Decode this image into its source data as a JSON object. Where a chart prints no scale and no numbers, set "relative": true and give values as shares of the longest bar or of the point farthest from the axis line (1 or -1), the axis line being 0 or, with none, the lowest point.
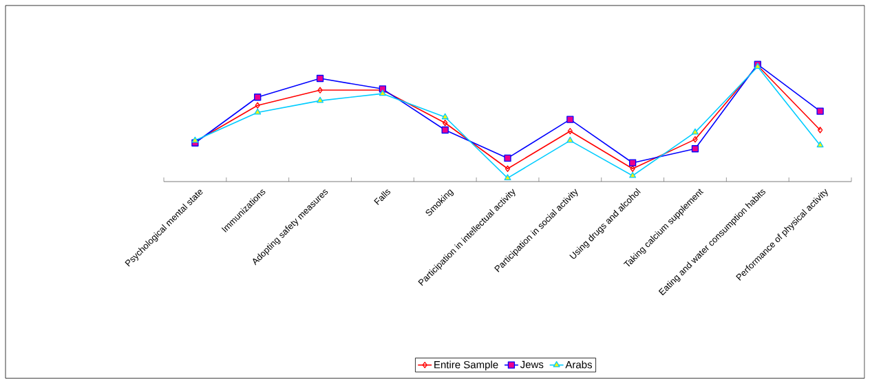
{
  "chart_data": {
    "type": "line",
    "relative": true,
    "categories": [
      "Psychological mental state",
      "Immunizations",
      "Adopting safety measures",
      "Falls",
      "Smoking",
      "Participation in intellectual activity",
      "Participation in social activity",
      "Using drugs and alcohol",
      "Taking calcium supplement",
      "Eating and water consumption habits",
      "Performance of physical activity"
    ],
    "series": [
      {
        "name": "Entire Sample",
        "color": "#ff0000",
        "marker": "diamond",
        "values": [
          0.34,
          0.65,
          0.78,
          0.78,
          0.5,
          0.11,
          0.43,
          0.11,
          0.36,
          0.99,
          0.44
        ]
      },
      {
        "name": "Jews",
        "color": "#0000ff",
        "marker": "square",
        "values": [
          0.33,
          0.72,
          0.88,
          0.79,
          0.44,
          0.2,
          0.53,
          0.16,
          0.28,
          1.0,
          0.6
        ]
      },
      {
        "name": "Arabs",
        "color": "#00ccff",
        "marker": "triangle",
        "values": [
          0.35,
          0.59,
          0.69,
          0.75,
          0.55,
          0.03,
          0.35,
          0.05,
          0.42,
          0.98,
          0.31
        ]
      }
    ],
    "legend": "bottom",
    "grid": false,
    "line_style": "solid"
  }
}
